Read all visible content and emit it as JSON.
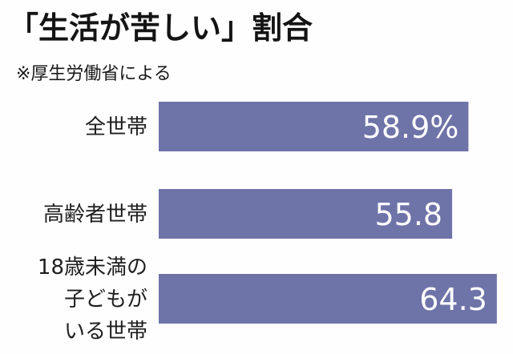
{
  "title": "「生活が苦しい」割合",
  "subtitle": "※厚生労働省による",
  "colors": {
    "bar": "#6e73a8",
    "text": "#1e1e1e",
    "value_text": "#ffffff"
  },
  "chart_data": {
    "type": "bar",
    "orientation": "horizontal",
    "categories": [
      [
        "全世帯"
      ],
      [
        "高齢者世帯"
      ],
      [
        "18歳未満の",
        "子どもが",
        "いる世帯"
      ]
    ],
    "values": [
      58.9,
      55.8,
      64.3
    ],
    "value_labels": [
      "58.9%",
      "55.8",
      "64.3"
    ],
    "xlim": [
      0,
      66
    ],
    "grid": false,
    "legend": "none"
  }
}
